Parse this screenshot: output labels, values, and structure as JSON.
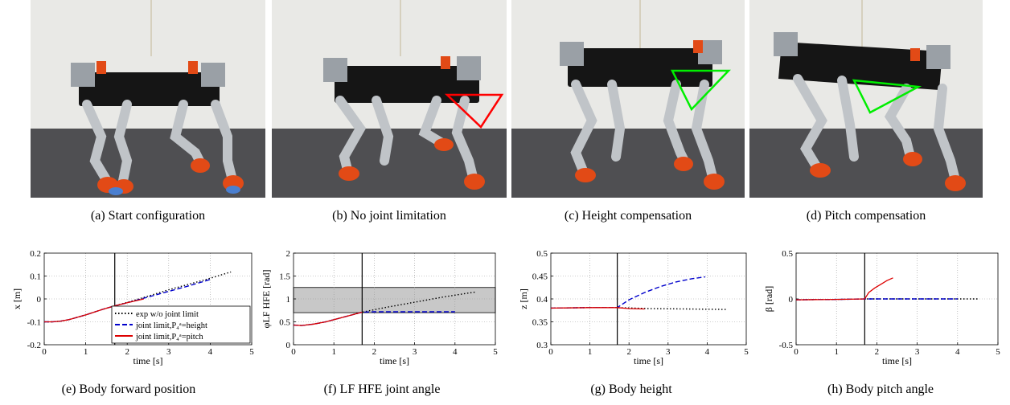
{
  "photos": [
    {
      "caption": "(a)  Start configuration"
    },
    {
      "caption": "(b)  No joint limitation"
    },
    {
      "caption": "(c)  Height compensation"
    },
    {
      "caption": "(d)  Pitch compensation"
    }
  ],
  "colors": {
    "exp": "#000000",
    "height": "#0000cc",
    "pitch": "#dd0000",
    "band": "#c8c8c8",
    "annotation_red": "#ff0000",
    "annotation_green": "#00ee00"
  },
  "chart_data": [
    {
      "type": "line",
      "caption": "(e)  Body forward position",
      "xlabel": "time [s]",
      "ylabel": "x [m]",
      "xlim": [
        0,
        5
      ],
      "ylim": [
        -0.2,
        0.2
      ],
      "xticks": [
        0,
        1,
        2,
        3,
        4,
        5
      ],
      "yticks": [
        -0.2,
        -0.1,
        0,
        0.1,
        0.2
      ],
      "ytick_labels": [
        "-0.2",
        "-0.1",
        "0",
        "0.1",
        "0.2"
      ],
      "vline": 1.7,
      "grid": true,
      "legend": {
        "placement": "bottom-right",
        "entries": [
          {
            "label": "exp w/o joint limit"
          },
          {
            "label": "joint limit,P₄ᵃ=height"
          },
          {
            "label": "joint limit,P₄ᵃ=pitch"
          }
        ]
      },
      "series": [
        {
          "key": "exp",
          "style": "dotted",
          "x": [
            0,
            0.2,
            0.4,
            0.6,
            0.8,
            1.0,
            1.2,
            1.4,
            1.7,
            2.0,
            2.5,
            3.0,
            3.5,
            4.0,
            4.5
          ],
          "y": [
            -0.1,
            -0.1,
            -0.097,
            -0.09,
            -0.08,
            -0.07,
            -0.058,
            -0.046,
            -0.03,
            -0.015,
            0.012,
            0.04,
            0.065,
            0.09,
            0.118
          ]
        },
        {
          "key": "height",
          "style": "dashed",
          "x": [
            0,
            0.2,
            0.4,
            0.6,
            0.8,
            1.0,
            1.2,
            1.4,
            1.7,
            2.0,
            2.5,
            3.0,
            3.5,
            4.0
          ],
          "y": [
            -0.1,
            -0.1,
            -0.097,
            -0.09,
            -0.08,
            -0.07,
            -0.058,
            -0.046,
            -0.03,
            -0.017,
            0.008,
            0.033,
            0.058,
            0.085
          ]
        },
        {
          "key": "pitch",
          "style": "solid",
          "x": [
            0,
            0.2,
            0.4,
            0.6,
            0.8,
            1.0,
            1.2,
            1.4,
            1.7,
            2.0,
            2.4
          ],
          "y": [
            -0.1,
            -0.1,
            -0.097,
            -0.09,
            -0.08,
            -0.07,
            -0.058,
            -0.046,
            -0.03,
            -0.017,
            0.0
          ]
        }
      ]
    },
    {
      "type": "line",
      "caption": "(f)  LF HFE joint angle",
      "xlabel": "time [s]",
      "ylabel": "φLF HFE [rad]",
      "xlim": [
        0,
        5
      ],
      "ylim": [
        0,
        2
      ],
      "xticks": [
        0,
        1,
        2,
        3,
        4,
        5
      ],
      "yticks": [
        0,
        0.5,
        1,
        1.5,
        2
      ],
      "ytick_labels": [
        "0",
        "0.5",
        "1",
        "1.5",
        "2"
      ],
      "vline": 1.7,
      "band": [
        0.7,
        1.25
      ],
      "grid": true,
      "series": [
        {
          "key": "exp",
          "style": "dotted",
          "x": [
            0,
            0.2,
            0.5,
            0.8,
            1.1,
            1.4,
            1.7,
            2.2,
            2.7,
            3.2,
            3.7,
            4.2,
            4.5
          ],
          "y": [
            0.43,
            0.42,
            0.45,
            0.5,
            0.57,
            0.64,
            0.71,
            0.8,
            0.88,
            0.96,
            1.04,
            1.11,
            1.15
          ]
        },
        {
          "key": "height",
          "style": "dashed",
          "x": [
            0,
            0.2,
            0.5,
            0.8,
            1.1,
            1.4,
            1.7,
            2.0,
            2.5,
            3.0,
            3.5,
            4.0
          ],
          "y": [
            0.43,
            0.42,
            0.45,
            0.5,
            0.57,
            0.64,
            0.71,
            0.72,
            0.72,
            0.72,
            0.72,
            0.72
          ]
        },
        {
          "key": "pitch",
          "style": "solid",
          "x": [
            0,
            0.2,
            0.5,
            0.8,
            1.1,
            1.4,
            1.7
          ],
          "y": [
            0.43,
            0.42,
            0.45,
            0.5,
            0.57,
            0.64,
            0.71
          ]
        }
      ]
    },
    {
      "type": "line",
      "caption": "(g)  Body height",
      "xlabel": "time [s]",
      "ylabel": "z [m]",
      "xlim": [
        0,
        5
      ],
      "ylim": [
        0.3,
        0.5
      ],
      "xticks": [
        0,
        1,
        2,
        3,
        4,
        5
      ],
      "yticks": [
        0.3,
        0.35,
        0.4,
        0.45,
        0.5
      ],
      "ytick_labels": [
        "0.3",
        "0.35",
        "0.4",
        "0.45",
        "0.5"
      ],
      "vline": 1.7,
      "grid": true,
      "series": [
        {
          "key": "exp",
          "style": "dotted",
          "x": [
            0,
            1.0,
            1.7,
            2.5,
            3.5,
            4.5
          ],
          "y": [
            0.38,
            0.381,
            0.381,
            0.379,
            0.378,
            0.377
          ]
        },
        {
          "key": "height",
          "style": "dashed",
          "x": [
            0,
            1.0,
            1.7,
            2.0,
            2.4,
            2.8,
            3.2,
            3.6,
            3.95
          ],
          "y": [
            0.38,
            0.381,
            0.381,
            0.398,
            0.414,
            0.427,
            0.437,
            0.444,
            0.448
          ]
        },
        {
          "key": "pitch",
          "style": "solid",
          "x": [
            0,
            1.0,
            1.7,
            2.0,
            2.4
          ],
          "y": [
            0.38,
            0.381,
            0.381,
            0.379,
            0.378
          ]
        }
      ]
    },
    {
      "type": "line",
      "caption": "(h)  Body pitch angle",
      "xlabel": "time [s]",
      "ylabel": "β [rad]",
      "xlim": [
        0,
        5
      ],
      "ylim": [
        -0.5,
        0.5
      ],
      "xticks": [
        0,
        1,
        2,
        3,
        4,
        5
      ],
      "yticks": [
        -0.5,
        0,
        0.5
      ],
      "ytick_labels": [
        "-0.5",
        "0",
        "0.5"
      ],
      "vline": 1.7,
      "grid": true,
      "series": [
        {
          "key": "exp",
          "style": "dotted",
          "x": [
            0,
            1.0,
            1.7,
            2.5,
            3.5,
            4.5
          ],
          "y": [
            -0.01,
            -0.005,
            0.0,
            0.0,
            0.0,
            0.0
          ]
        },
        {
          "key": "height",
          "style": "dashed",
          "x": [
            0,
            1.0,
            1.7,
            2.5,
            3.0,
            3.5,
            4.0
          ],
          "y": [
            -0.01,
            -0.005,
            0.0,
            0.0,
            0.0,
            0.0,
            0.0
          ]
        },
        {
          "key": "pitch",
          "style": "solid",
          "x": [
            0,
            1.0,
            1.7,
            1.8,
            1.95,
            2.1,
            2.25,
            2.4
          ],
          "y": [
            -0.01,
            -0.005,
            0.0,
            0.07,
            0.12,
            0.16,
            0.2,
            0.23
          ]
        }
      ]
    }
  ]
}
